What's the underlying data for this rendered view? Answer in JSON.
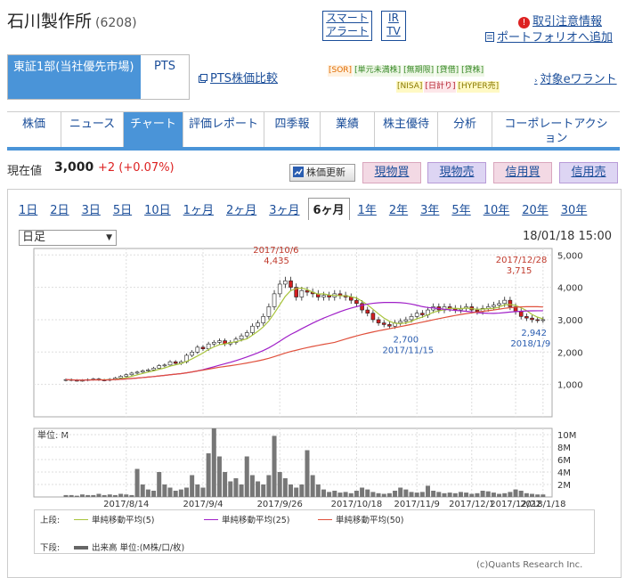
{
  "header": {
    "company_name": "石川製作所",
    "stock_code": "(6208)",
    "alert_label_1": "スマート",
    "alert_label_2": "アラート",
    "ir_label_1": "IR",
    "ir_label_2": "TV",
    "notice_icon": "!",
    "notice_label": "取引注意情報",
    "portfolio_icon": "portfolio-icon",
    "portfolio_label": "ポートフォリオへ追加"
  },
  "market": {
    "active_tab": "東証1部(当社優先市場)",
    "pts_tab": "PTS",
    "pts_compare": "PTS株価比較",
    "tags_row1": [
      "[SOR]",
      "[単元未満株]",
      "[無期限]",
      "[貸借]",
      "[貸株]"
    ],
    "tags_row2": [
      "[NISA]",
      "[日計り]",
      "[HYPER売]"
    ],
    "warrant_link": "対象eワラント"
  },
  "nav": {
    "items": [
      "株価",
      "ニュース",
      "チャート",
      "評価レポート",
      "四季報",
      "業績",
      "株主優待",
      "分析",
      "コーポレートアクション"
    ],
    "active_index": 2
  },
  "price": {
    "label": "現在値",
    "value": "3,000",
    "change": "+2 (+0.07%)",
    "update_button": "株価更新",
    "buy_cash": "現物買",
    "sell_cash": "現物売",
    "buy_margin": "信用買",
    "sell_margin": "信用売"
  },
  "chart_controls": {
    "periods": [
      "1日",
      "2日",
      "3日",
      "5日",
      "10日",
      "1ヶ月",
      "2ヶ月",
      "3ヶ月",
      "6ヶ月",
      "1年",
      "2年",
      "3年",
      "5年",
      "10年",
      "20年",
      "30年"
    ],
    "active_period": "6ヶ月",
    "interval": "日足",
    "timestamp": "18/01/18 15:00"
  },
  "chart_data": {
    "type": "candlestick",
    "price_axis": {
      "ticks": [
        "5,000",
        "4,000",
        "3,000",
        "2,000",
        "1,000"
      ],
      "ylim": [
        0,
        5200
      ]
    },
    "volume_axis": {
      "unit_label": "単位: M",
      "ticks": [
        "10M",
        "8M",
        "6M",
        "4M",
        "2M"
      ],
      "ylim": [
        0,
        11
      ]
    },
    "x_tick_labels": [
      "2017/8/14",
      "2017/9/4",
      "2017/9/26",
      "2017/10/18",
      "2017/11/9",
      "2017/12/1",
      "2017/12/22",
      "2018/1/18"
    ],
    "annotations": [
      {
        "date": "2017/10/6",
        "value": "4,435",
        "kind": "high"
      },
      {
        "date": "2017/11/15",
        "value": "2,700",
        "kind": "low"
      },
      {
        "date": "2017/12/28",
        "value": "3,715",
        "kind": "high"
      },
      {
        "date": "2018/1/9",
        "value": "2,942",
        "kind": "low"
      }
    ],
    "close_approx": [
      1150,
      1130,
      1120,
      1130,
      1150,
      1170,
      1140,
      1130,
      1160,
      1200,
      1250,
      1300,
      1350,
      1380,
      1420,
      1450,
      1500,
      1580,
      1600,
      1700,
      1650,
      1700,
      1900,
      2000,
      2150,
      2100,
      2250,
      2300,
      2350,
      2250,
      2300,
      2400,
      2500,
      2600,
      2800,
      2900,
      3100,
      3400,
      3800,
      4100,
      4200,
      4000,
      3700,
      3900,
      3850,
      3800,
      3700,
      3750,
      3700,
      3800,
      3750,
      3700,
      3600,
      3500,
      3300,
      3200,
      3000,
      2900,
      2850,
      2800,
      2900,
      2950,
      3000,
      3100,
      3200,
      3150,
      3300,
      3400,
      3300,
      3400,
      3350,
      3300,
      3350,
      3400,
      3300,
      3250,
      3350,
      3400,
      3450,
      3500,
      3600,
      3400,
      3250,
      3100,
      3050,
      3000,
      2990,
      3000
    ],
    "volume_approx": [
      0.3,
      0.3,
      0.2,
      0.4,
      0.3,
      0.3,
      0.5,
      0.3,
      0.4,
      0.3,
      0.5,
      0.4,
      0.3,
      4.5,
      2.0,
      1.2,
      1.0,
      4.0,
      2.0,
      1.5,
      1.0,
      1.2,
      1.5,
      3.5,
      2.0,
      1.5,
      7.0,
      11.0,
      6.5,
      4.0,
      2.5,
      3.0,
      2.0,
      6.5,
      3.5,
      2.5,
      2.0,
      3.5,
      9.8,
      4.0,
      3.0,
      2.0,
      1.5,
      2.0,
      7.5,
      3.5,
      2.0,
      1.2,
      0.8,
      1.0,
      0.7,
      0.8,
      0.6,
      1.0,
      1.5,
      1.2,
      0.8,
      0.6,
      0.5,
      0.6,
      1.0,
      1.5,
      1.2,
      0.8,
      0.7,
      0.8,
      1.8,
      1.0,
      0.8,
      0.6,
      0.7,
      0.6,
      0.8,
      0.7,
      0.5,
      0.6,
      1.0,
      0.9,
      0.7,
      0.5,
      0.6,
      0.8,
      1.2,
      1.0,
      0.6,
      0.5,
      0.4,
      0.4
    ]
  },
  "legend": {
    "upper_label": "上段:",
    "ma5": "単純移動平均(5)",
    "ma25": "単純移動平均(25)",
    "ma50": "単純移動平均(50)",
    "lower_label": "下段:",
    "volume": "出来高 単位:(M株/口/枚)",
    "colors": {
      "ma5": "#a8c43c",
      "ma25": "#a020c8",
      "ma50": "#e0503c",
      "up": "#ffffff",
      "down": "#d02020",
      "volume": "#777777"
    }
  },
  "copyright": "(c)Quants Research Inc."
}
